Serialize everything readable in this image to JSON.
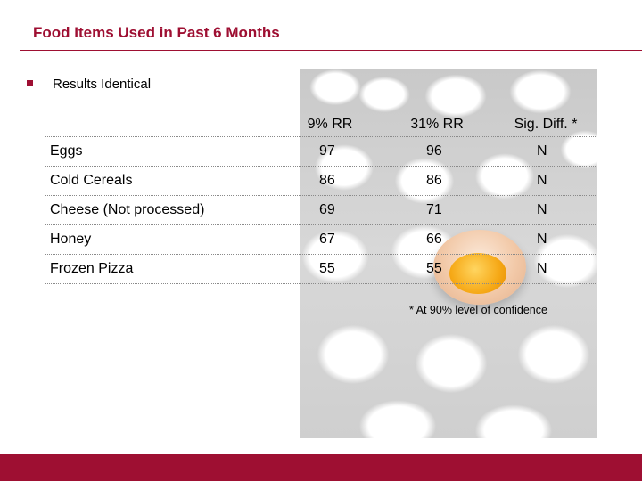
{
  "slide": {
    "title": "Food Items Used in Past 6 Months",
    "bullet": "Results Identical",
    "colors": {
      "accent": "#9e0f32"
    }
  },
  "table": {
    "headers": [
      "",
      "9% RR",
      "31% RR",
      "Sig. Diff. *"
    ],
    "rows": [
      {
        "label": "Eggs",
        "a": "97",
        "b": "96",
        "sig": "N"
      },
      {
        "label": "Cold Cereals",
        "a": "86",
        "b": "86",
        "sig": "N"
      },
      {
        "label": "Cheese (Not processed)",
        "a": "69",
        "b": "71",
        "sig": "N"
      },
      {
        "label": "Honey",
        "a": "67",
        "b": "66",
        "sig": "N"
      },
      {
        "label": "Frozen Pizza",
        "a": "55",
        "b": "55",
        "sig": "N"
      }
    ]
  },
  "footnote": "* At 90% level of confidence"
}
